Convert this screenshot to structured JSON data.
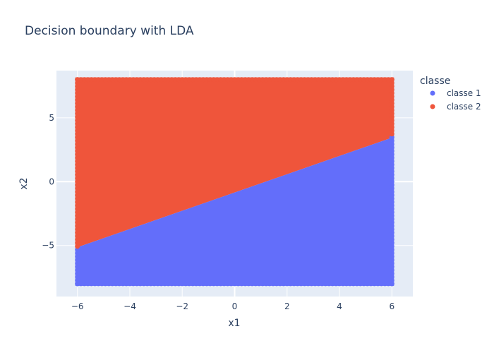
{
  "chart_data": {
    "type": "scatter",
    "title": "Decision boundary with LDA",
    "xlabel": "x1",
    "ylabel": "x2",
    "xlim": [
      -6.8,
      6.8
    ],
    "ylim": [
      -9,
      8.7
    ],
    "x_ticks": [
      -6,
      -4,
      -2,
      0,
      2,
      4,
      6
    ],
    "x_tick_labels": [
      "−6",
      "−4",
      "−2",
      "0",
      "2",
      "4",
      "6"
    ],
    "y_ticks": [
      -5,
      0,
      5
    ],
    "y_tick_labels": [
      "−5",
      "0",
      "5"
    ],
    "grid": "on",
    "legend": {
      "title": "classe",
      "placement": "right",
      "entries": [
        "classe 1",
        "classe 2"
      ]
    },
    "grid_range": {
      "x": [
        -6,
        6
      ],
      "y": [
        -8,
        8
      ]
    },
    "boundary": {
      "x": [
        -6,
        6
      ],
      "y": [
        -5.2,
        3.5
      ]
    },
    "series": [
      {
        "name": "classe 1",
        "color": "#636efa",
        "region": "below boundary"
      },
      {
        "name": "classe 2",
        "color": "#ef553b",
        "region": "above boundary"
      }
    ]
  },
  "colors": {
    "plot_bg": "#e5ecf6",
    "grid": "#ffffff",
    "text": "#2a3f5f"
  }
}
